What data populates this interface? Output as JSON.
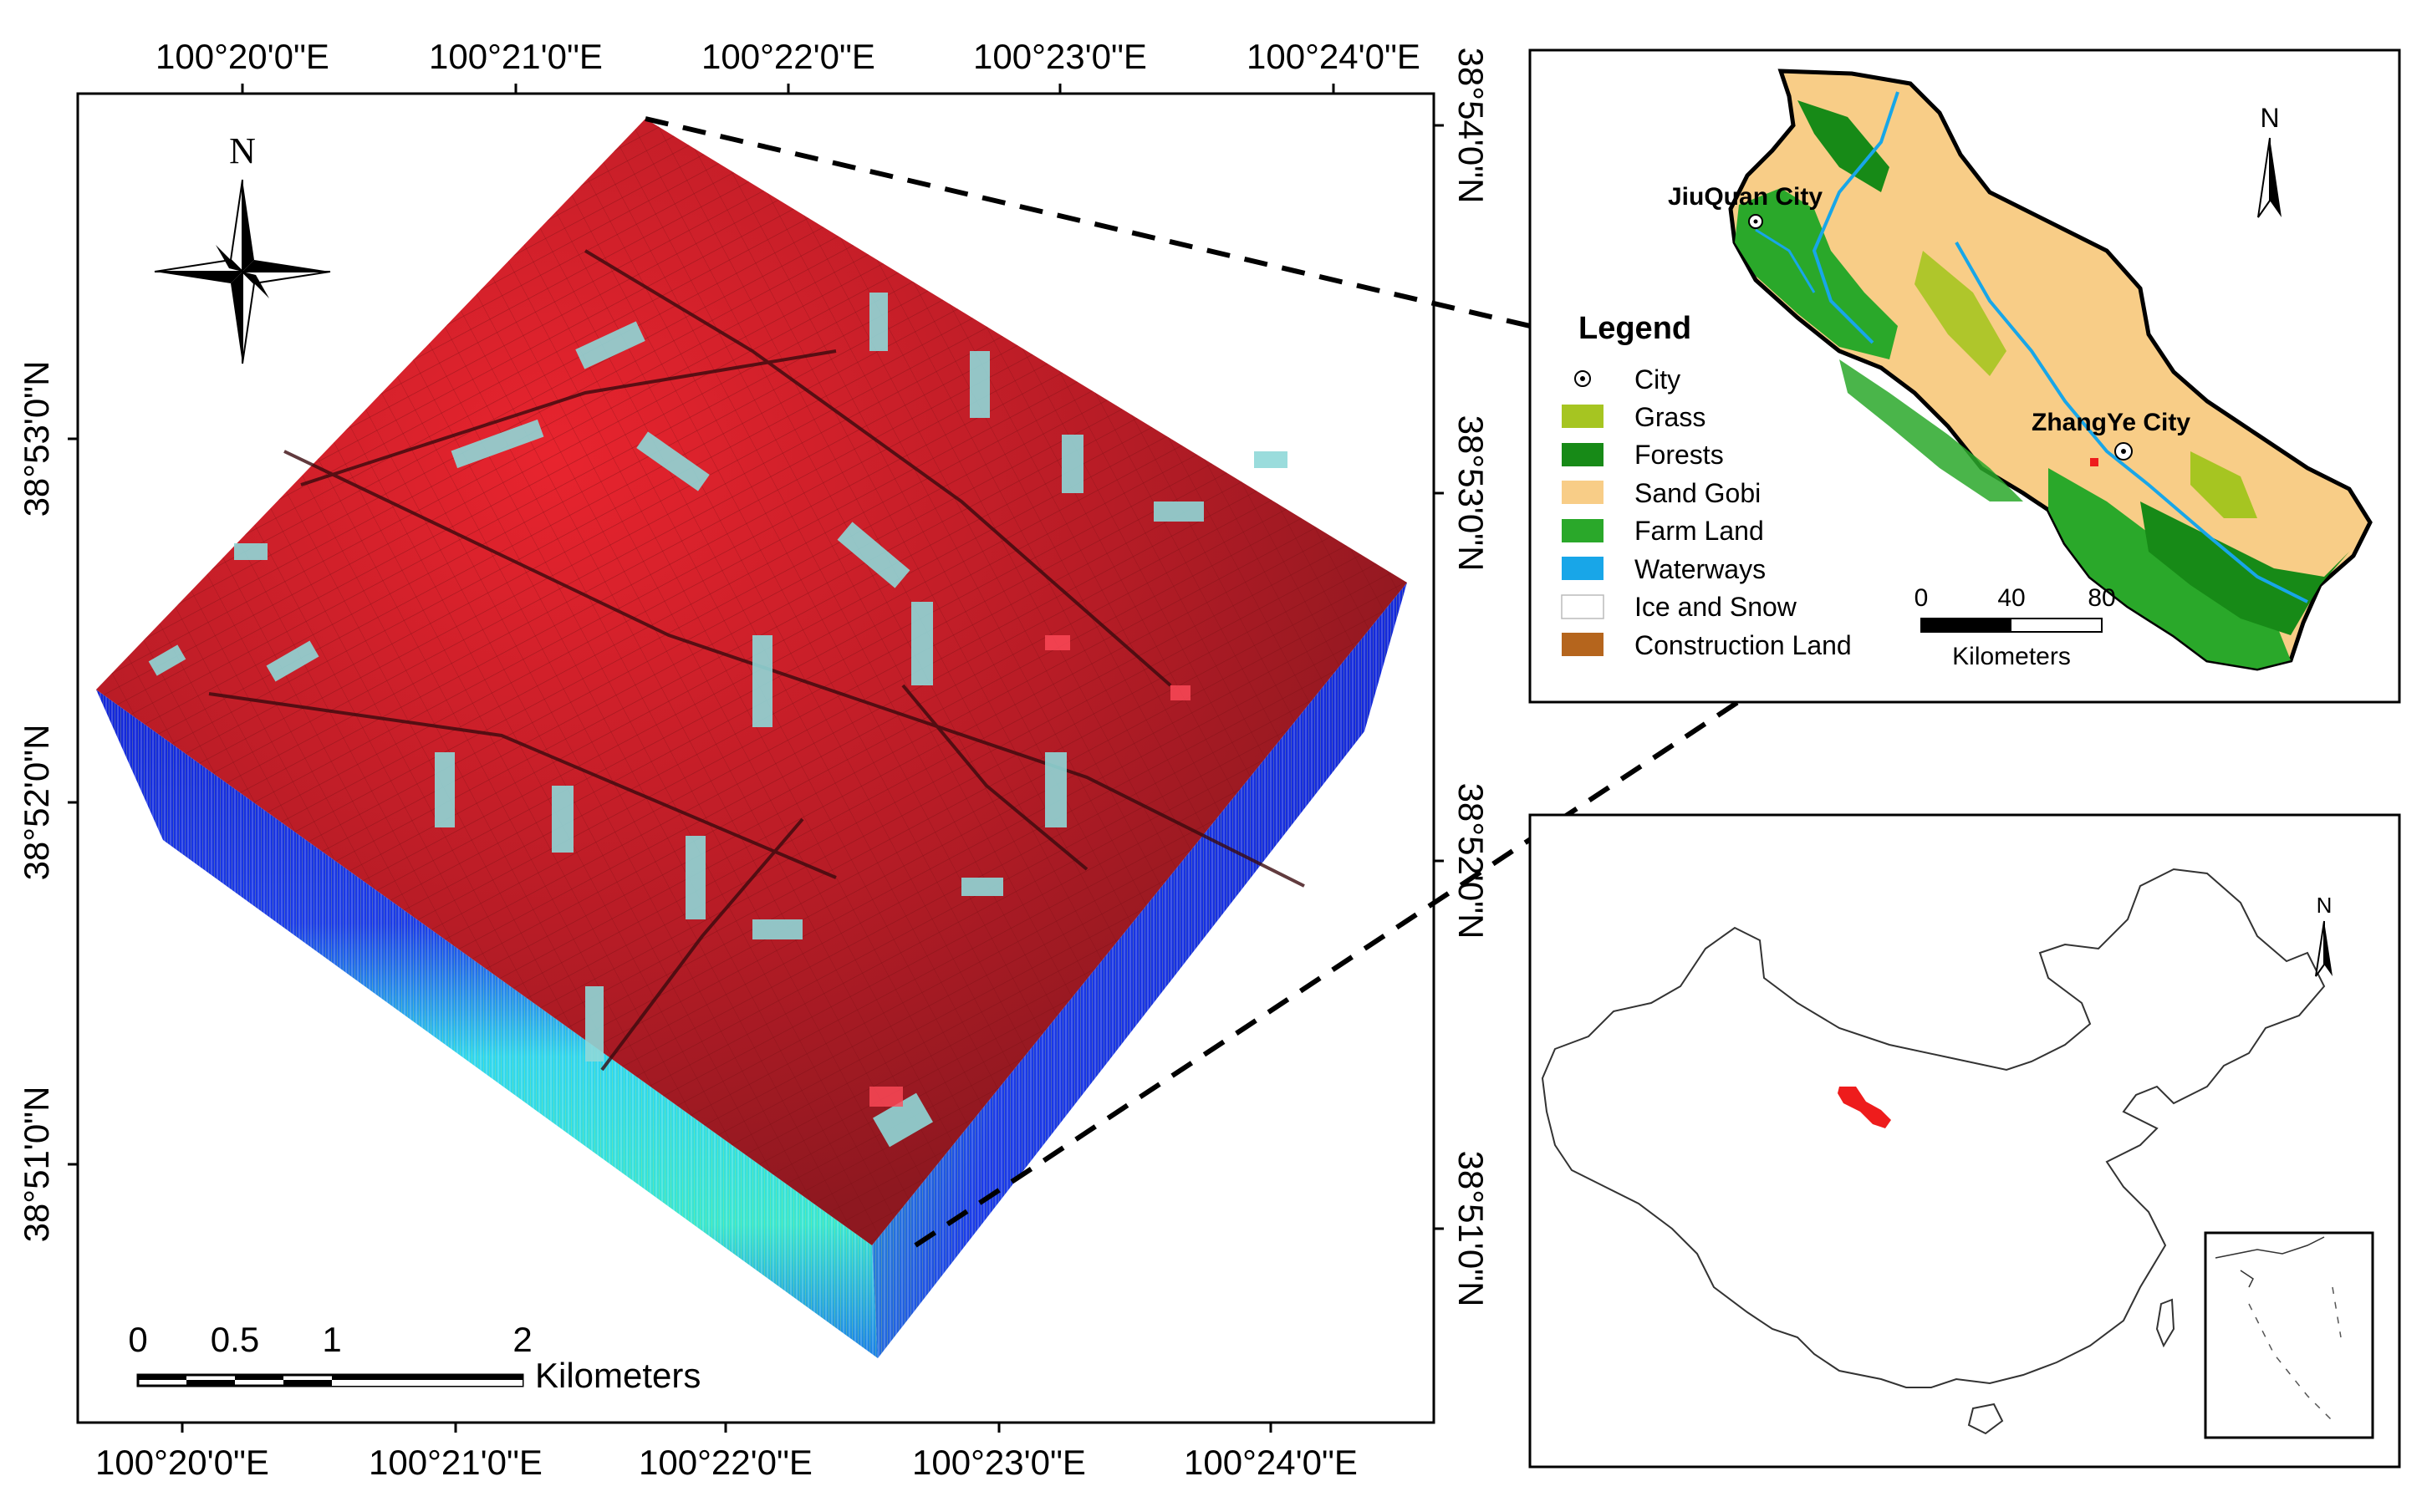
{
  "main_map": {
    "top_lon_labels": [
      "100°20'0\"E",
      "100°21'0\"E",
      "100°22'0\"E",
      "100°23'0\"E",
      "100°24'0\"E"
    ],
    "bottom_lon_labels": [
      "100°20'0\"E",
      "100°21'0\"E",
      "100°22'0\"E",
      "100°23'0\"E",
      "100°24'0\"E"
    ],
    "left_lat_labels": [
      "38°53'0\"N",
      "38°52'0\"N",
      "38°51'0\"N"
    ],
    "right_lat_labels": [
      "38°54'0\"N",
      "38°53'0\"N",
      "38°52'0\"N",
      "38°51'0\"N"
    ],
    "north_arrow_label": "N",
    "scale_bar": {
      "ticks": [
        "0",
        "0.5",
        "1",
        "2"
      ],
      "unit": "Kilometers"
    },
    "colors": {
      "cube_top": "#c2202b",
      "cube_side_deep": "#1226d8",
      "cube_side_light": "#33d8f0",
      "field_patch": "#8fd8d8"
    }
  },
  "region_map": {
    "north_label": "N",
    "city_labels": [
      "JiuQuan City",
      "ZhangYe City"
    ],
    "legend": {
      "title": "Legend",
      "items": [
        {
          "label": "City",
          "color": "#ffffff",
          "kind": "city-symbol"
        },
        {
          "label": "Grass",
          "color": "#a6c521",
          "kind": "swatch"
        },
        {
          "label": "Forests",
          "color": "#178a17",
          "kind": "swatch"
        },
        {
          "label": "Sand Gobi",
          "color": "#f8cd87",
          "kind": "swatch"
        },
        {
          "label": "Farm Land",
          "color": "#2aa82a",
          "kind": "swatch"
        },
        {
          "label": "Waterways",
          "color": "#18a6e8",
          "kind": "swatch"
        },
        {
          "label": "Ice and Snow",
          "color": "#ffffff",
          "kind": "swatch"
        },
        {
          "label": "Construction Land",
          "color": "#b5651d",
          "kind": "swatch"
        }
      ]
    },
    "scale_bar": {
      "ticks": [
        "0",
        "40",
        "80"
      ],
      "unit": "Kilometers"
    }
  },
  "china_map": {
    "north_label": "N",
    "highlight_color": "#ee1c1c"
  }
}
